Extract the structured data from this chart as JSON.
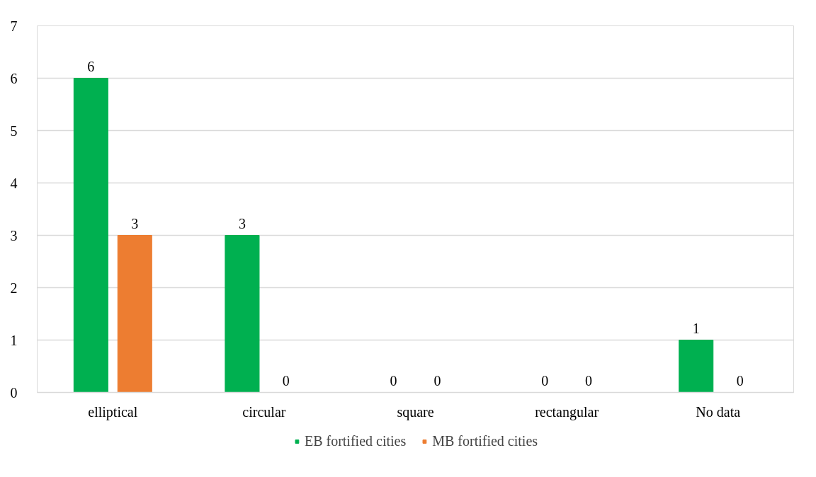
{
  "chart_data": {
    "type": "bar",
    "categories": [
      "elliptical",
      "circular",
      "square",
      "rectangular",
      "No data"
    ],
    "series": [
      {
        "name": "EB fortified cities",
        "color": "#00b050",
        "values": [
          6,
          3,
          0,
          0,
          1
        ]
      },
      {
        "name": "MB fortified cities",
        "color": "#ed7d31",
        "values": [
          3,
          0,
          0,
          0,
          0
        ]
      }
    ],
    "ylim": [
      0,
      7
    ],
    "yticks": [
      0,
      1,
      2,
      3,
      4,
      5,
      6,
      7
    ],
    "grid": "y",
    "legend": "bottom",
    "data_labels": true
  }
}
